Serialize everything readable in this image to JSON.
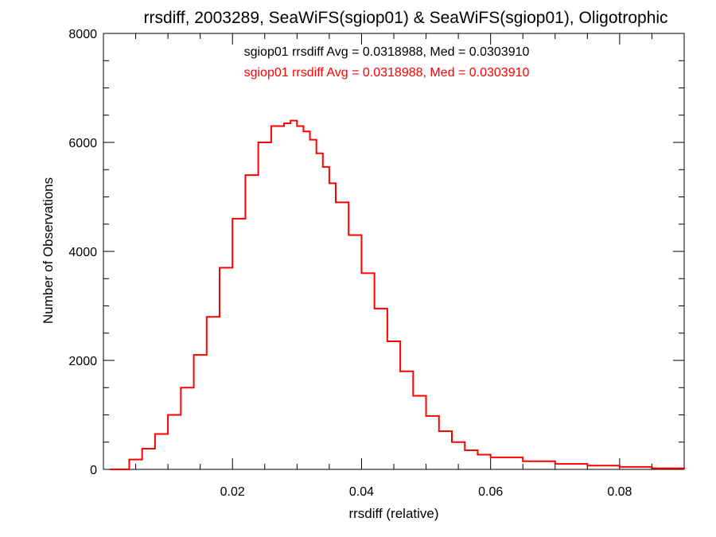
{
  "chart_data": {
    "type": "line",
    "title": "rrsdiff, 2003289, SeaWiFS(sgiop01) & SeaWiFS(sgiop01), Oligotrophic",
    "xlabel": "rrsdiff (relative)",
    "ylabel": "Number of Observations",
    "xlim": [
      0.0,
      0.09
    ],
    "ylim": [
      0,
      8000
    ],
    "x_ticks": [
      0.02,
      0.04,
      0.06,
      0.08
    ],
    "x_tick_labels": [
      "0.02",
      "0.04",
      "0.06",
      "0.08"
    ],
    "y_ticks": [
      0,
      2000,
      4000,
      6000,
      8000
    ],
    "y_tick_labels": [
      "0",
      "2000",
      "4000",
      "6000",
      "8000"
    ],
    "grid": false,
    "legend_position": "top-center",
    "annotations": [
      {
        "text": "sgiop01 rrsdiff Avg = 0.0318988, Med = 0.0303910",
        "color": "#000000"
      },
      {
        "text": "sgiop01 rrsdiff Avg = 0.0318988, Med = 0.0303910",
        "color": "#ff0000"
      }
    ],
    "series": [
      {
        "color": "#ff0000",
        "step": true,
        "x": [
          0.001,
          0.004,
          0.006,
          0.008,
          0.01,
          0.012,
          0.014,
          0.016,
          0.018,
          0.02,
          0.022,
          0.024,
          0.026,
          0.028,
          0.029,
          0.03,
          0.031,
          0.032,
          0.033,
          0.034,
          0.035,
          0.036,
          0.038,
          0.04,
          0.042,
          0.044,
          0.046,
          0.048,
          0.05,
          0.052,
          0.054,
          0.056,
          0.058,
          0.06,
          0.065,
          0.07,
          0.075,
          0.08,
          0.085,
          0.09
        ],
        "y": [
          0,
          180,
          380,
          650,
          1000,
          1500,
          2100,
          2800,
          3700,
          4600,
          5400,
          6000,
          6300,
          6350,
          6400,
          6300,
          6200,
          6050,
          5800,
          5550,
          5250,
          4900,
          4300,
          3600,
          2950,
          2350,
          1800,
          1350,
          980,
          700,
          500,
          350,
          270,
          220,
          150,
          100,
          70,
          45,
          20,
          0
        ]
      }
    ]
  }
}
